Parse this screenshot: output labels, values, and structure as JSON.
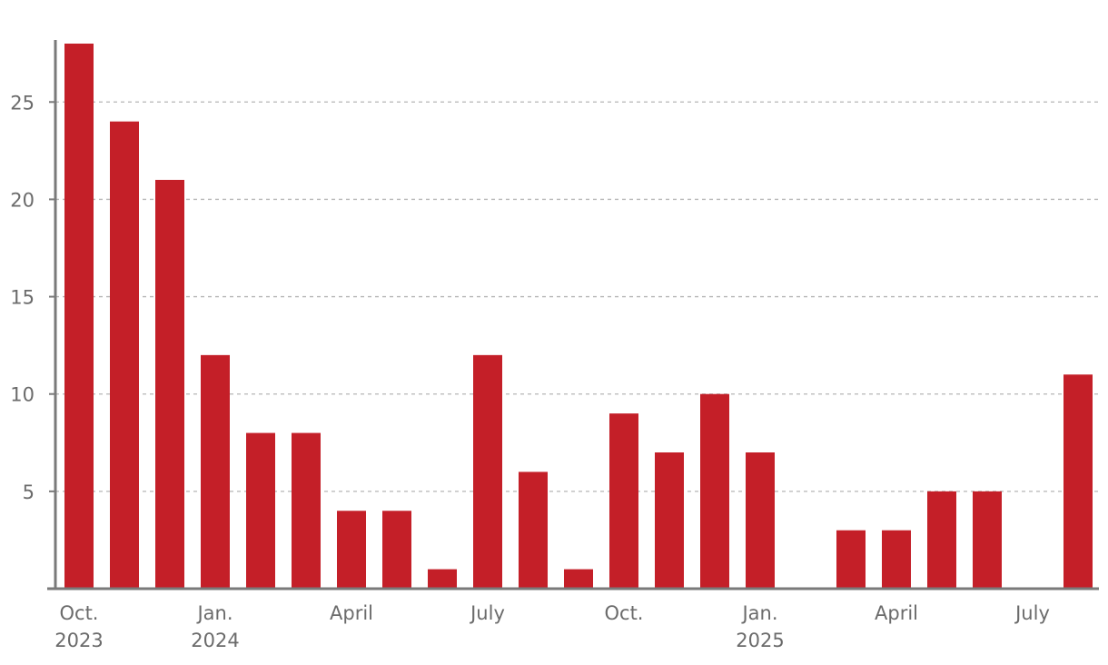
{
  "chart_data": {
    "type": "bar",
    "title": "",
    "xlabel": "",
    "ylabel": "",
    "color": "#c41f28",
    "ylim": [
      0,
      28
    ],
    "yticks": [
      5,
      10,
      15,
      20,
      25
    ],
    "grid": "horizontal-dashed",
    "categories": [
      "2023-10",
      "2023-11",
      "2023-12",
      "2024-01",
      "2024-02",
      "2024-03",
      "2024-04",
      "2024-05",
      "2024-06",
      "2024-07",
      "2024-08",
      "2024-09",
      "2024-10",
      "2024-11",
      "2024-12",
      "2025-01",
      "2025-02",
      "2025-03",
      "2025-04",
      "2025-05",
      "2025-06",
      "2025-07",
      "2025-08"
    ],
    "values": [
      28,
      24,
      21,
      12,
      8,
      8,
      4,
      4,
      1,
      12,
      6,
      1,
      9,
      7,
      10,
      7,
      0,
      3,
      3,
      5,
      5,
      0,
      11
    ],
    "xtick_labels": [
      {
        "category": "2023-10",
        "line1": "Oct.",
        "line2": "2023"
      },
      {
        "category": "2024-01",
        "line1": "Jan.",
        "line2": "2024"
      },
      {
        "category": "2024-04",
        "line1": "April",
        "line2": ""
      },
      {
        "category": "2024-07",
        "line1": "July",
        "line2": ""
      },
      {
        "category": "2024-10",
        "line1": "Oct.",
        "line2": ""
      },
      {
        "category": "2025-01",
        "line1": "Jan.",
        "line2": "2025"
      },
      {
        "category": "2025-04",
        "line1": "April",
        "line2": ""
      },
      {
        "category": "2025-07",
        "line1": "July",
        "line2": ""
      }
    ]
  }
}
